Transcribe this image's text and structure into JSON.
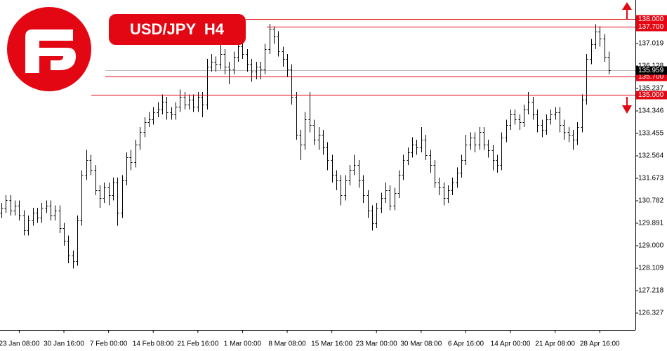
{
  "chart_data": {
    "type": "ohlc",
    "title": "USD/JPY H4",
    "bar_color": "#000000",
    "level_color": "#e30613",
    "categories": [
      null,
      null,
      null,
      null,
      "23 Jan 08:00",
      null,
      null,
      null,
      null,
      null,
      null,
      null,
      null,
      null,
      "30 Jan 16:00",
      null,
      null,
      null,
      null,
      null,
      null,
      null,
      null,
      null,
      "7 Feb 00:00",
      null,
      null,
      null,
      null,
      null,
      null,
      null,
      null,
      null,
      "14 Feb 08:00",
      null,
      null,
      null,
      null,
      null,
      null,
      null,
      null,
      null,
      "21 Feb 16:00",
      null,
      null,
      null,
      null,
      null,
      null,
      null,
      null,
      null,
      "1 Mar 00:00",
      null,
      null,
      null,
      null,
      null,
      null,
      null,
      null,
      null,
      "8 Mar 08:00",
      null,
      null,
      null,
      null,
      null,
      null,
      null,
      null,
      null,
      "15 Mar 16:00",
      null,
      null,
      null,
      null,
      null,
      null,
      null,
      null,
      null,
      "23 Mar 00:00",
      null,
      null,
      null,
      null,
      null,
      null,
      null,
      null,
      null,
      "30 Mar 08:00",
      null,
      null,
      null,
      null,
      null,
      null,
      null,
      null,
      null,
      "6 Apr 16:00",
      null,
      null,
      null,
      null,
      null,
      null,
      null,
      null,
      null,
      "14 Apr 00:00",
      null,
      null,
      null,
      null,
      null,
      null,
      null,
      null,
      null,
      "21 Apr 08:00",
      null,
      null,
      null,
      null,
      null,
      null,
      null,
      null,
      null,
      "28 Apr 16:00",
      null,
      null
    ],
    "open": [
      130.3,
      130.5,
      130.8,
      130.4,
      130.6,
      130.2,
      129.6,
      130.0,
      130.3,
      130.1,
      130.5,
      130.6,
      130.2,
      130.4,
      129.7,
      129.2,
      128.6,
      128.4,
      130.0,
      131.8,
      132.4,
      132.0,
      131.2,
      130.9,
      131.3,
      131.0,
      131.5,
      130.3,
      131.6,
      132.5,
      132.3,
      133.0,
      133.5,
      133.9,
      134.0,
      134.3,
      134.4,
      134.7,
      134.3,
      134.2,
      134.5,
      134.9,
      134.6,
      134.8,
      134.5,
      134.9,
      134.6,
      136.1,
      136.3,
      136.2,
      136.6,
      136.1,
      136.0,
      136.5,
      136.9,
      136.6,
      136.2,
      135.9,
      136.1,
      136.0,
      136.8,
      137.6,
      137.3,
      136.7,
      136.4,
      136.0,
      134.9,
      133.4,
      133.0,
      134.0,
      133.8,
      133.2,
      133.4,
      132.9,
      132.4,
      131.8,
      131.6,
      131.0,
      131.6,
      132.0,
      132.2,
      131.6,
      131.0,
      130.4,
      129.9,
      130.5,
      130.9,
      131.2,
      130.6,
      131.1,
      131.8,
      132.4,
      132.7,
      133.0,
      132.9,
      133.2,
      132.6,
      132.2,
      131.5,
      131.3,
      130.9,
      131.2,
      131.5,
      131.9,
      132.4,
      133.0,
      133.3,
      133.0,
      133.5,
      133.0,
      132.8,
      132.4,
      132.2,
      133.3,
      133.8,
      134.2,
      134.0,
      133.9,
      134.4,
      134.7,
      134.2,
      133.8,
      133.6,
      134.0,
      134.2,
      134.3,
      133.8,
      133.5,
      133.4,
      133.2,
      133.7,
      134.8,
      136.4,
      137.0,
      137.5,
      137.2,
      136.5
    ],
    "high": [
      130.7,
      131.0,
      131.0,
      130.8,
      130.8,
      130.4,
      130.2,
      130.5,
      130.5,
      130.7,
      130.8,
      130.8,
      130.6,
      130.6,
      129.9,
      129.4,
      128.8,
      130.2,
      132.0,
      132.8,
      132.6,
      132.2,
      131.4,
      131.5,
      131.5,
      131.7,
      131.7,
      131.8,
      132.7,
      132.8,
      133.2,
      133.7,
      134.1,
      134.3,
      134.5,
      134.7,
      135.0,
      134.9,
      134.5,
      134.7,
      135.2,
      135.1,
      135.0,
      135.0,
      135.1,
      135.1,
      136.4,
      136.6,
      136.5,
      137.0,
      136.8,
      136.3,
      136.7,
      137.2,
      137.1,
      136.8,
      136.4,
      136.3,
      136.3,
      137.0,
      137.8,
      137.7,
      137.5,
      136.9,
      136.6,
      136.2,
      135.1,
      133.6,
      134.3,
      135.1,
      134.0,
      133.7,
      133.6,
      133.1,
      132.6,
      132.0,
      131.8,
      131.8,
      132.2,
      132.6,
      132.4,
      131.8,
      131.2,
      130.6,
      130.7,
      131.1,
      131.5,
      131.4,
      131.3,
      132.0,
      132.6,
      132.9,
      133.3,
      133.2,
      133.7,
      133.4,
      132.8,
      132.4,
      131.7,
      131.5,
      131.4,
      131.7,
      132.1,
      132.6,
      133.4,
      133.5,
      133.5,
      133.7,
      133.7,
      133.2,
      133.0,
      132.6,
      133.5,
      134.0,
      134.4,
      134.4,
      134.2,
      134.6,
      135.1,
      134.9,
      134.4,
      134.0,
      134.2,
      134.4,
      134.5,
      134.5,
      134.0,
      133.7,
      133.6,
      133.9,
      135.0,
      136.6,
      137.2,
      137.78,
      137.7,
      137.4,
      136.7
    ],
    "low": [
      130.1,
      130.3,
      130.2,
      130.2,
      130.0,
      129.4,
      129.4,
      129.8,
      129.9,
      129.9,
      130.3,
      130.0,
      130.0,
      129.5,
      129.0,
      128.3,
      128.1,
      128.2,
      129.8,
      131.6,
      131.8,
      131.0,
      130.5,
      130.7,
      130.6,
      130.8,
      129.8,
      130.1,
      131.4,
      132.0,
      132.1,
      132.8,
      133.3,
      133.7,
      133.8,
      134.1,
      134.2,
      134.0,
      134.0,
      134.0,
      134.3,
      134.4,
      134.4,
      134.3,
      134.3,
      134.1,
      134.4,
      135.9,
      135.9,
      136.0,
      135.8,
      135.4,
      135.8,
      136.3,
      136.4,
      135.9,
      135.5,
      135.6,
      135.6,
      135.8,
      136.6,
      137.0,
      136.5,
      136.1,
      135.7,
      134.6,
      133.2,
      132.4,
      132.8,
      133.5,
      133.0,
      132.8,
      132.6,
      132.0,
      131.5,
      131.2,
      130.6,
      130.8,
      131.4,
      131.8,
      131.3,
      130.7,
      130.1,
      129.6,
      129.7,
      130.3,
      130.7,
      130.4,
      130.4,
      130.9,
      131.6,
      132.2,
      132.5,
      132.6,
      132.7,
      132.4,
      131.9,
      131.3,
      131.0,
      130.6,
      130.7,
      131.0,
      131.3,
      131.7,
      132.2,
      132.8,
      132.7,
      132.8,
      132.8,
      132.5,
      132.0,
      131.9,
      132.0,
      133.1,
      133.6,
      133.8,
      133.6,
      133.7,
      134.2,
      134.0,
      133.5,
      133.3,
      133.4,
      133.8,
      134.0,
      133.5,
      133.2,
      133.1,
      132.8,
      133.0,
      133.5,
      134.6,
      136.2,
      136.8,
      136.9,
      136.3,
      135.8
    ],
    "close": [
      130.5,
      130.8,
      130.4,
      130.6,
      130.2,
      129.6,
      130.0,
      130.3,
      130.1,
      130.5,
      130.6,
      130.2,
      130.4,
      129.7,
      129.2,
      128.6,
      128.4,
      130.0,
      131.8,
      132.4,
      132.0,
      131.2,
      130.9,
      131.3,
      131.0,
      131.5,
      130.3,
      131.6,
      132.5,
      132.3,
      133.0,
      133.5,
      133.9,
      134.0,
      134.3,
      134.4,
      134.7,
      134.3,
      134.2,
      134.5,
      134.9,
      134.6,
      134.8,
      134.5,
      134.9,
      134.6,
      136.1,
      136.3,
      136.2,
      136.6,
      136.1,
      136.0,
      136.5,
      136.9,
      136.6,
      136.2,
      135.9,
      136.1,
      136.0,
      136.8,
      137.6,
      137.3,
      136.7,
      136.4,
      136.0,
      134.9,
      133.4,
      133.0,
      134.0,
      133.8,
      133.2,
      133.4,
      132.9,
      132.4,
      131.8,
      131.6,
      131.0,
      131.6,
      132.0,
      132.2,
      131.6,
      131.0,
      130.4,
      129.9,
      130.5,
      130.9,
      131.2,
      130.6,
      131.1,
      131.8,
      132.4,
      132.7,
      133.0,
      132.9,
      133.2,
      132.6,
      132.2,
      131.5,
      131.3,
      130.9,
      131.2,
      131.5,
      131.9,
      132.4,
      133.0,
      133.3,
      133.0,
      133.5,
      133.0,
      132.8,
      132.4,
      132.2,
      133.3,
      133.8,
      134.2,
      134.0,
      133.9,
      134.4,
      134.7,
      134.2,
      133.8,
      133.6,
      134.0,
      134.2,
      134.3,
      133.8,
      133.5,
      133.4,
      133.2,
      133.7,
      134.8,
      136.4,
      137.0,
      137.5,
      137.2,
      136.5,
      135.959
    ],
    "ylim": [
      125.659,
      138.745
    ],
    "yticks": [
      137.019,
      136.128,
      135.237,
      134.346,
      133.455,
      132.564,
      131.673,
      130.782,
      129.891,
      {
        "value": 129.0,
        "label": "129.000"
      },
      128.109,
      127.218,
      126.327
    ],
    "levels": [
      {
        "value": 138.0,
        "label": "138.000"
      },
      {
        "value": 137.7,
        "label": "137.700"
      },
      {
        "value": 135.7,
        "label": "135.700"
      },
      {
        "value": 135.0,
        "label": "135.000"
      }
    ]
  }
}
